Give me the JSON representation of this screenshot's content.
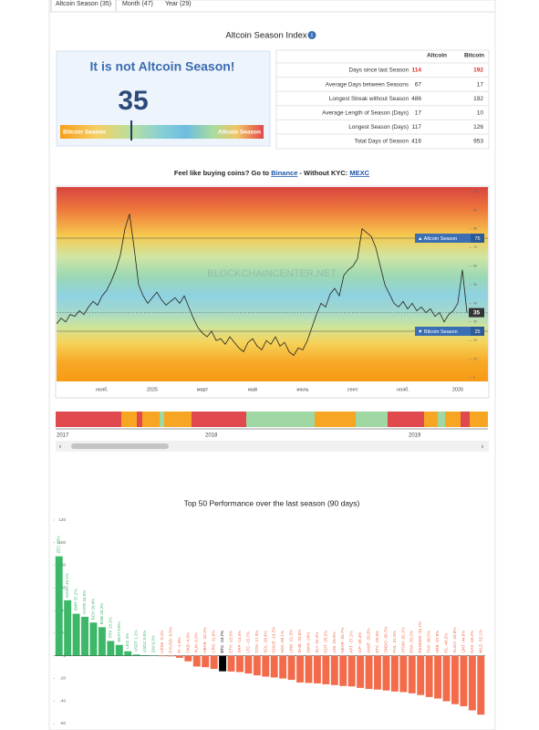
{
  "tabs": [
    "Altcoin Season (35)",
    "Month (47)",
    "Year (29)"
  ],
  "header": {
    "title": "Altcoin Season Index"
  },
  "gauge": {
    "title": "It is not Altcoin Season!",
    "value": 35,
    "range": [
      0,
      100
    ],
    "left_label": "Bitcoin Season",
    "right_label": "Altcoin Season"
  },
  "table": {
    "headers": [
      "Altcoin",
      "Bitcoin"
    ],
    "rows": [
      [
        "Days since last Season",
        114,
        192
      ],
      [
        "Average Days between Seasons",
        67,
        17
      ],
      [
        "Longest Streak without Season",
        486,
        192
      ],
      [
        "Average Length of Season (Days)",
        17,
        10
      ],
      [
        "Longest Season (Days)",
        117,
        126
      ],
      [
        "Total Days of Season",
        416,
        953
      ]
    ]
  },
  "promo": {
    "text_before": "Feel like buying coins? Go to",
    "link1": "Binance",
    "text_middle": "- Without KYC:",
    "link2": "MEXC"
  },
  "timeline": {
    "labels": [
      "2017",
      "2018",
      "2019"
    ]
  },
  "chart_data": [
    {
      "type": "line",
      "watermark": "BLOCKCHAINCENTER.NET",
      "color": "#222222",
      "categories": [
        null,
        null,
        null,
        null,
        null,
        null,
        null,
        null,
        null,
        null,
        "нояб.",
        null,
        null,
        null,
        null,
        null,
        null,
        null,
        null,
        null,
        null,
        "2025",
        null,
        null,
        null,
        null,
        null,
        null,
        null,
        null,
        null,
        null,
        "март",
        null,
        null,
        null,
        null,
        null,
        null,
        null,
        null,
        null,
        null,
        "май",
        null,
        null,
        null,
        null,
        null,
        null,
        null,
        null,
        null,
        null,
        "июль",
        null,
        null,
        null,
        null,
        null,
        null,
        null,
        null,
        null,
        null,
        "сент.",
        null,
        null,
        null,
        null,
        null,
        null,
        null,
        null,
        null,
        null,
        "нояб.",
        null,
        null,
        null,
        null,
        null,
        null,
        null,
        null,
        null,
        null,
        null,
        "2026",
        null,
        null
      ],
      "values": [
        29,
        32,
        30,
        34,
        33,
        36,
        34,
        38,
        41,
        39,
        44,
        47,
        52,
        58,
        66,
        80,
        88,
        70,
        50,
        44,
        40,
        43,
        46,
        42,
        39,
        41,
        43,
        40,
        44,
        38,
        32,
        27,
        24,
        22,
        25,
        20,
        21,
        18,
        22,
        19,
        16,
        14,
        19,
        21,
        17,
        15,
        20,
        18,
        22,
        17,
        19,
        14,
        12,
        16,
        15,
        20,
        27,
        34,
        40,
        38,
        45,
        48,
        44,
        55,
        58,
        60,
        64,
        80,
        78,
        76,
        70,
        60,
        50,
        45,
        40,
        38,
        41,
        37,
        40,
        36,
        38,
        35,
        37,
        33,
        35,
        30,
        34,
        36,
        40,
        58,
        35
      ],
      "ylim": [
        0,
        100
      ],
      "yticks": [
        0,
        10,
        20,
        30,
        40,
        50,
        60,
        70,
        80,
        90,
        100
      ],
      "reference_lines": [
        {
          "label": "▲ Altcoin Season",
          "value": 75,
          "color": "#3a6fb5"
        },
        {
          "label": "▼ Bitcoin Season",
          "value": 25,
          "color": "#3a6fb5"
        }
      ]
    },
    {
      "type": "bar",
      "title": "Top 50 Performance over the last season (90 days)",
      "categories": [
        "ZEC",
        "DASH",
        "XMR",
        "HYPE",
        "BCH",
        "BNB",
        "TRX",
        "WLFI",
        "LEO",
        "USDT",
        "USDC",
        "DAI",
        "USDe",
        "PYUSD",
        "PI",
        "OKB",
        "XLM",
        "HBAR",
        "CRO",
        "BTC",
        "ETH",
        "XRP",
        "LTC",
        "TON",
        "SOL",
        "DOGE",
        "ADA",
        "LINK",
        "SHIB",
        "AVAX",
        "SUI",
        "DOT",
        "UNI",
        "NEAR",
        "APT",
        "ICP",
        "AAVE",
        "ETC",
        "ONDO",
        "POL",
        "ATOM",
        "ENA",
        "RENDER",
        "TAO",
        "ARB",
        "FIL",
        "ALGO",
        "QNT",
        "KAS",
        "WLD"
      ],
      "values": [
        88,
        49.1,
        37.2,
        34.5,
        29.4,
        25.3,
        13.1,
        9.6,
        4,
        1.1,
        0.5,
        0.3,
        -0.1,
        -0.5,
        -1.8,
        -4.9,
        -9.5,
        -10.1,
        -11.6,
        -13.7,
        -13.9,
        -14.4,
        -15.7,
        -17.3,
        -18.4,
        -19.2,
        -20.1,
        -21.3,
        -23.6,
        -24,
        -24.4,
        -25.2,
        -25.9,
        -26.7,
        -27.1,
        -28.4,
        -29.3,
        -29.9,
        -30.7,
        -31.6,
        -32.1,
        -33.2,
        -34.7,
        -36.5,
        -37.8,
        -40.2,
        -42.8,
        -44.6,
        -48.3,
        -52.1
      ],
      "value_labels": [
        "88%",
        "49.1%",
        "37.2%",
        "34.5%",
        "29.4%",
        "25.3%",
        "13.1%",
        "9.6%",
        "4%",
        "1.1%",
        "0.5%",
        "0.3%",
        "-0.1%",
        "-0.5%",
        "-1.8%",
        "-4.9%",
        "-9.5%",
        "-10.1%",
        "-11.6%",
        "-13.7%",
        "-13.9%",
        "-14.4%",
        "-15.7%",
        "-17.3%",
        "-18.4%",
        "-19.2%",
        "-20.1%",
        "-21.3%",
        "-23.6%",
        "-24%",
        "-24.4%",
        "-25.2%",
        "-25.9%",
        "-26.7%",
        "-27.1%",
        "-28.4%",
        "-29.3%",
        "-29.9%",
        "-30.7%",
        "-31.6%",
        "-32.1%",
        "-33.2%",
        "-34.7%",
        "-36.5%",
        "-37.8%",
        "-40.2%",
        "-42.8%",
        "-44.6%",
        "-48.3%",
        "-52.1%"
      ],
      "positive_color": "#3cb868",
      "negative_color": "#f26b4a",
      "highlight": "BTC",
      "highlight_color": "#000000",
      "ylim": [
        -60,
        120
      ],
      "yticks": [
        120,
        100,
        80,
        60,
        40,
        20,
        0,
        -20,
        -40,
        -60
      ]
    }
  ]
}
